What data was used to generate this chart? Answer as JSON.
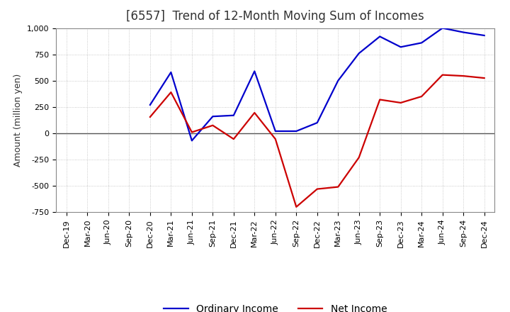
{
  "title": "[6557]  Trend of 12-Month Moving Sum of Incomes",
  "ylabel": "Amount (million yen)",
  "x_labels": [
    "Dec-19",
    "Mar-20",
    "Jun-20",
    "Sep-20",
    "Dec-20",
    "Mar-21",
    "Jun-21",
    "Sep-21",
    "Dec-21",
    "Mar-22",
    "Jun-22",
    "Sep-22",
    "Dec-22",
    "Mar-23",
    "Jun-23",
    "Sep-23",
    "Dec-23",
    "Mar-24",
    "Jun-24",
    "Sep-24",
    "Dec-24"
  ],
  "ordinary_income": [
    null,
    null,
    null,
    null,
    270,
    580,
    -70,
    160,
    170,
    590,
    20,
    20,
    100,
    500,
    760,
    920,
    820,
    860,
    1000,
    960,
    930
  ],
  "net_income": [
    null,
    null,
    null,
    null,
    155,
    390,
    10,
    75,
    -55,
    195,
    -55,
    -700,
    -530,
    -510,
    -230,
    320,
    290,
    350,
    555,
    545,
    525
  ],
  "ylim": [
    -750,
    1000
  ],
  "yticks": [
    -750,
    -500,
    -250,
    0,
    250,
    500,
    750,
    1000
  ],
  "line_color_ordinary": "#0000cc",
  "line_color_net": "#cc0000",
  "background_color": "#ffffff",
  "grid_color": "#bbbbbb",
  "zero_line_color": "#555555",
  "title_fontsize": 12,
  "title_color": "#333333",
  "axis_label_fontsize": 9,
  "tick_fontsize": 8,
  "legend_fontsize": 10
}
